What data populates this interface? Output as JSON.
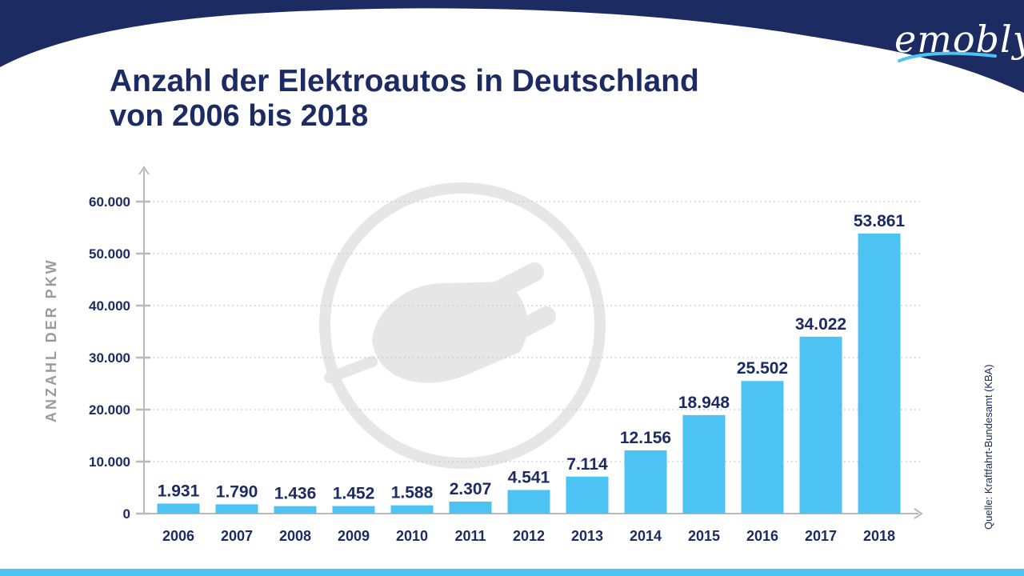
{
  "brand": {
    "name": "emobly"
  },
  "header": {
    "title": "Anzahl der Elektroautos in Deutschland",
    "subtitle": "von 2006 bis 2018"
  },
  "source": "Quelle: Kraftfahrt-Bundesamt (KBA)",
  "colors": {
    "navy": "#1c2b62",
    "bar": "#4cc3f2",
    "axis": "#b9b9b9",
    "watermark": "#e6e6e6"
  },
  "chart_data": {
    "type": "bar",
    "title": "Anzahl der Elektroautos in Deutschland",
    "subtitle": "von 2006 bis 2018",
    "ylabel": "ANZAHL DER PKW",
    "xlabel": "",
    "categories": [
      "2006",
      "2007",
      "2008",
      "2009",
      "2010",
      "2011",
      "2012",
      "2013",
      "2014",
      "2015",
      "2016",
      "2017",
      "2018"
    ],
    "values": [
      1931,
      1790,
      1436,
      1452,
      1588,
      2307,
      4541,
      7114,
      12156,
      18948,
      25502,
      34022,
      53861
    ],
    "value_labels": [
      "1.931",
      "1.790",
      "1.436",
      "1.452",
      "1.588",
      "2.307",
      "4.541",
      "7.114",
      "12.156",
      "18.948",
      "25.502",
      "34.022",
      "53.861"
    ],
    "ylim": [
      0,
      60000
    ],
    "yticks": [
      0,
      10000,
      20000,
      30000,
      40000,
      50000,
      60000
    ],
    "ytick_labels": [
      "0",
      "10.000",
      "20.000",
      "30.000",
      "40.000",
      "50.000",
      "60.000"
    ],
    "grid": true,
    "legend": "none"
  }
}
